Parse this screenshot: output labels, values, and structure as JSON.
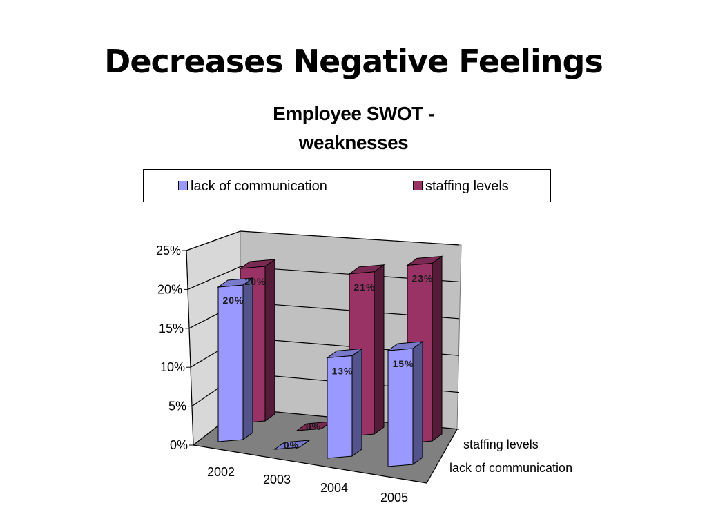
{
  "slide": {
    "title": "Decreases Negative Feelings"
  },
  "chart_data": {
    "type": "bar",
    "title_lines": [
      "Employee SWOT -",
      "weaknesses"
    ],
    "categories": [
      "2002",
      "2003",
      "2004",
      "2005"
    ],
    "series": [
      {
        "name": "lack of communication",
        "values": [
          20,
          0,
          13,
          15
        ],
        "labels": [
          "20%",
          "0%",
          "13%",
          "15%"
        ],
        "color": "#9999ff"
      },
      {
        "name": "staffing levels",
        "values": [
          20,
          0,
          21,
          23
        ],
        "labels": [
          "20%",
          "0%",
          "21%",
          "23%"
        ],
        "color": "#993366"
      }
    ],
    "y_ticks": [
      "0%",
      "5%",
      "10%",
      "15%",
      "20%",
      "25%"
    ],
    "ylim": [
      0,
      25
    ],
    "depth_labels": [
      "staffing levels",
      "lack of communication"
    ],
    "legend_position": "top",
    "grid": true,
    "style": "3d-column"
  }
}
